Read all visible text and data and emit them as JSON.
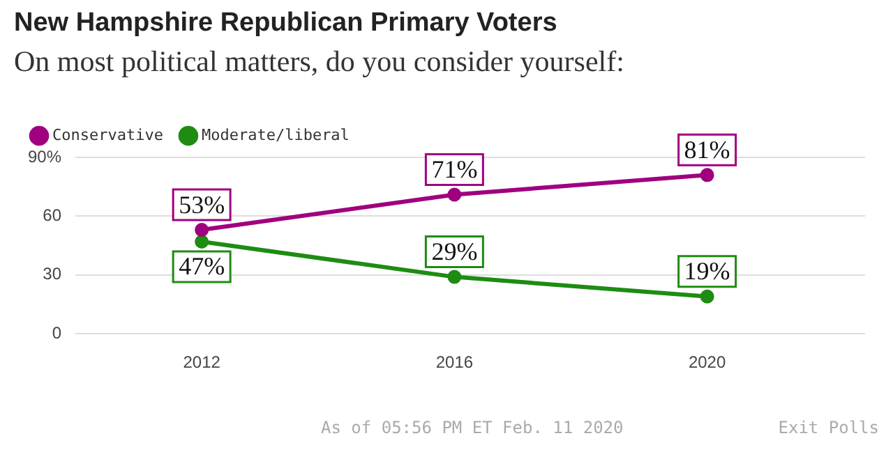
{
  "chart_data": {
    "type": "line",
    "title": "New Hampshire Republican Primary Voters",
    "subtitle": "On most political matters, do you consider yourself:",
    "x": [
      2012,
      2016,
      2020
    ],
    "xlim": [
      2010,
      2022.5
    ],
    "xticks": [
      2012,
      2016,
      2020
    ],
    "ylim": [
      0,
      90
    ],
    "yticks": [
      0,
      30,
      60,
      {
        "value": 90,
        "label": "90%"
      }
    ],
    "series": [
      {
        "name": "Conservative",
        "color": "#a0007f",
        "values": [
          53,
          71,
          81
        ],
        "value_labels": [
          "53%",
          "71%",
          "81%"
        ]
      },
      {
        "name": "Moderate/liberal",
        "color": "#1e8c12",
        "values": [
          47,
          29,
          19
        ],
        "value_labels": [
          "47%",
          "29%",
          "19%"
        ]
      }
    ],
    "grid": "y",
    "legend": "top left",
    "marker": "circle",
    "line_style": "solid",
    "annotations": [
      "As of 05:56 PM ET Feb. 11 2020",
      "Exit Polls"
    ]
  }
}
